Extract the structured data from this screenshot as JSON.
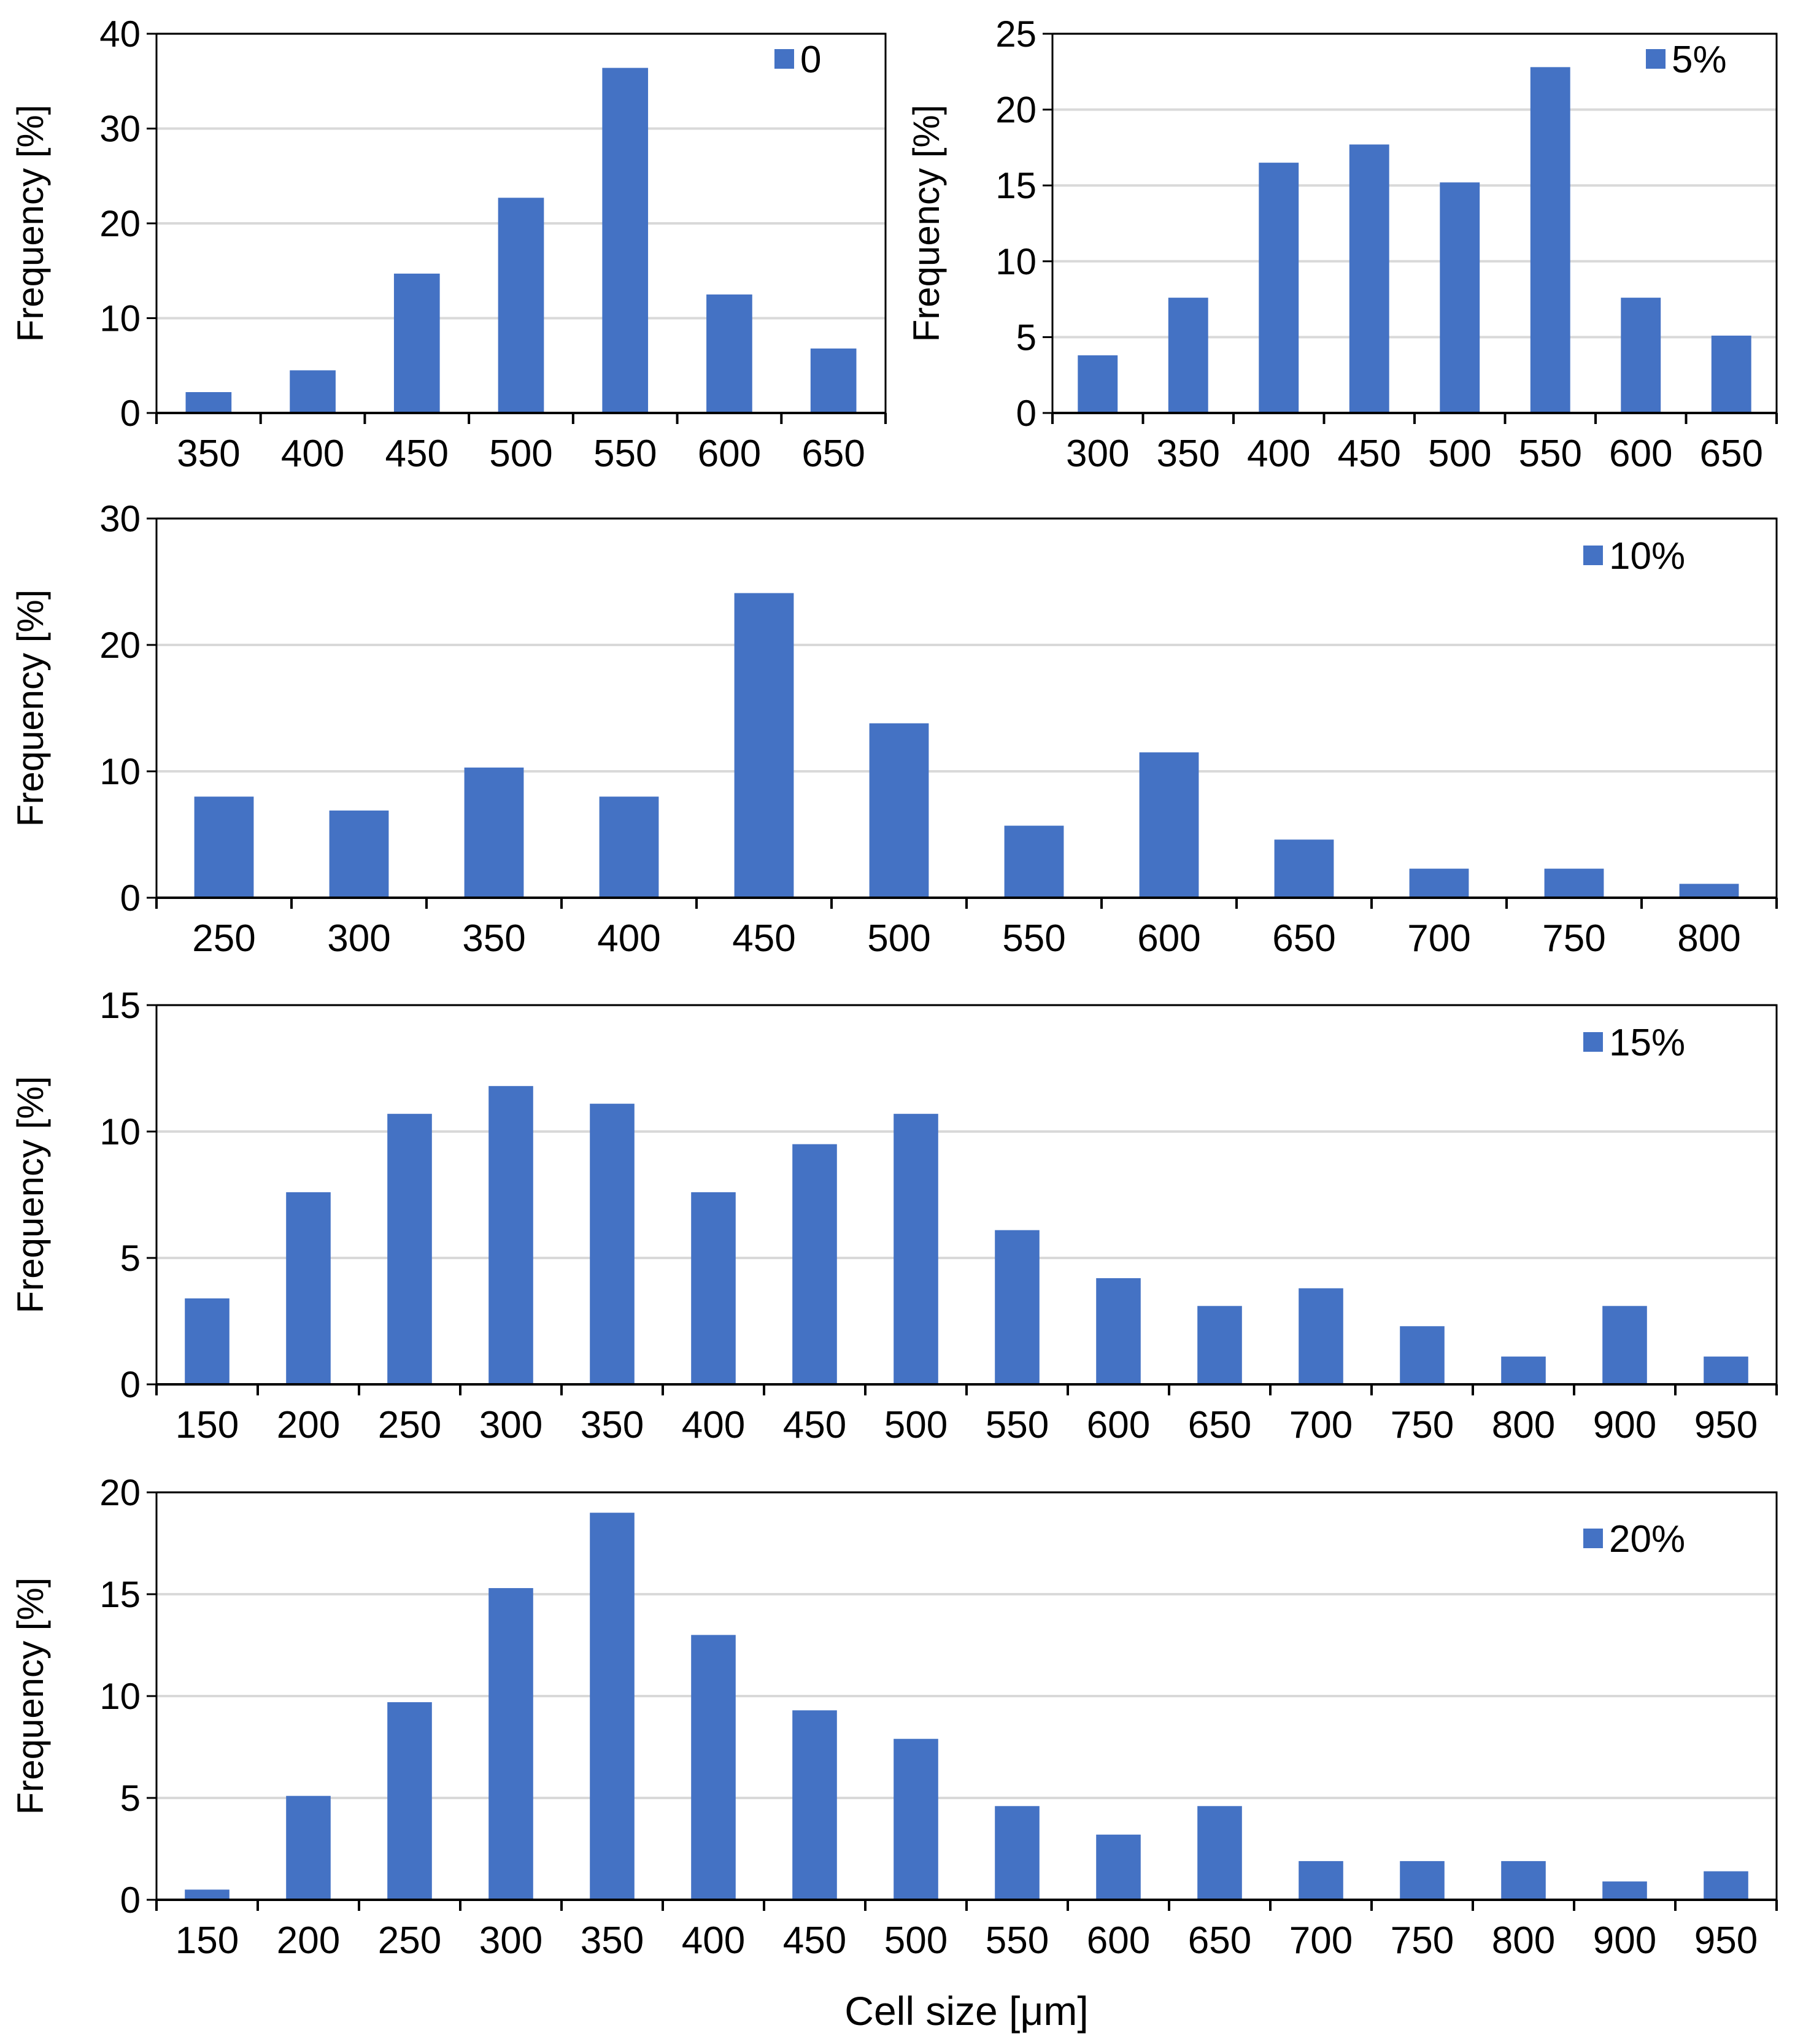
{
  "figure": {
    "xlabel_shared": "Cell size [μm]"
  },
  "colors": {
    "bar": "#4472C4",
    "grid": "#d9d9d9",
    "axis": "#000000",
    "frame": "#000000"
  },
  "chart_data": [
    {
      "type": "bar",
      "legend": "0",
      "legend_position": "top-right",
      "ylabel": "Frequency [%]",
      "ylim": [
        0,
        40
      ],
      "yticks": [
        0,
        10,
        20,
        30,
        40
      ],
      "categories": [
        "350",
        "400",
        "450",
        "500",
        "550",
        "600",
        "650"
      ],
      "values": [
        2.2,
        4.5,
        14.7,
        22.7,
        36.4,
        12.5,
        6.8
      ],
      "grid": true
    },
    {
      "type": "bar",
      "legend": "5%",
      "legend_position": "top-right",
      "ylabel": "Frequency [%]",
      "ylim": [
        0,
        25
      ],
      "yticks": [
        0,
        5,
        10,
        15,
        20,
        25
      ],
      "categories": [
        "300",
        "350",
        "400",
        "450",
        "500",
        "550",
        "600",
        "650"
      ],
      "values": [
        3.8,
        7.6,
        16.5,
        17.7,
        15.2,
        22.8,
        7.6,
        5.1
      ],
      "grid": true
    },
    {
      "type": "bar",
      "legend": "10%",
      "legend_position": "top-right",
      "ylabel": "Frequency [%]",
      "ylim": [
        0,
        30
      ],
      "yticks": [
        0,
        10,
        20,
        30
      ],
      "categories": [
        "250",
        "300",
        "350",
        "400",
        "450",
        "500",
        "550",
        "600",
        "650",
        "700",
        "750",
        "800"
      ],
      "values": [
        8.0,
        6.9,
        10.3,
        8.0,
        24.1,
        13.8,
        5.7,
        11.5,
        4.6,
        2.3,
        2.3,
        1.1
      ],
      "grid": true
    },
    {
      "type": "bar",
      "legend": "15%",
      "legend_position": "top-right",
      "ylabel": "Frequency [%]",
      "ylim": [
        0,
        15
      ],
      "yticks": [
        0,
        5,
        10,
        15
      ],
      "categories": [
        "150",
        "200",
        "250",
        "300",
        "350",
        "400",
        "450",
        "500",
        "550",
        "600",
        "650",
        "700",
        "750",
        "800",
        "900",
        "950"
      ],
      "values": [
        3.4,
        7.6,
        10.7,
        11.8,
        11.1,
        7.6,
        9.5,
        10.7,
        6.1,
        4.2,
        3.1,
        3.8,
        2.3,
        1.1,
        3.1,
        1.1
      ],
      "grid": true
    },
    {
      "type": "bar",
      "legend": "20%",
      "legend_position": "top-right",
      "ylabel": "Frequency [%]",
      "ylim": [
        0,
        20
      ],
      "yticks": [
        0,
        5,
        10,
        15,
        20
      ],
      "categories": [
        "150",
        "200",
        "250",
        "300",
        "350",
        "400",
        "450",
        "500",
        "550",
        "600",
        "650",
        "700",
        "750",
        "800",
        "900",
        "950"
      ],
      "values": [
        0.5,
        5.1,
        9.7,
        15.3,
        19.0,
        13.0,
        9.3,
        7.9,
        4.6,
        3.2,
        4.6,
        1.9,
        1.9,
        1.9,
        0.9,
        1.4
      ],
      "grid": true
    }
  ]
}
